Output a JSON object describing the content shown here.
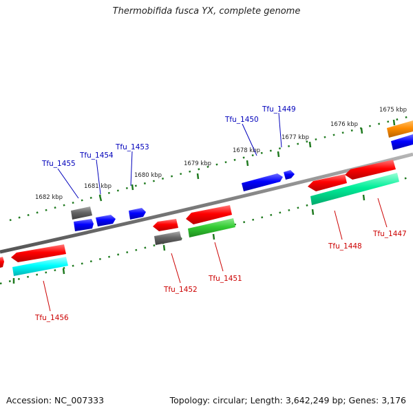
{
  "title": "Thermobifida fusca YX, complete genome",
  "footer": {
    "accession": "Accession: NC_007333",
    "summary": "Topology: circular; Length: 3,642,249 bp; Genes: 3,176"
  },
  "colors": {
    "backbone": "#7d7d7d",
    "ruler": "#1f7a1f",
    "label_top": "#0000bb",
    "label_bottom": "#cc0000"
  },
  "kbp_labels": [
    "1682 kbp",
    "1681 kbp",
    "1680 kbp",
    "1679 kbp",
    "1678 kbp",
    "1677 kbp",
    "1676 kbp",
    "1675 kbp"
  ],
  "gene_labels_top": [
    "Tfu_1455",
    "Tfu_1454",
    "Tfu_1453",
    "Tfu_1450",
    "Tfu_1449"
  ],
  "gene_labels_bottom": [
    "Tfu_1456",
    "Tfu_1452",
    "Tfu_1451",
    "Tfu_1448",
    "Tfu_1447"
  ],
  "features": [
    {
      "ring": "outer",
      "color": "#0000ff",
      "strand": "+"
    },
    {
      "ring": "outer",
      "color": "#0000ff",
      "strand": "+"
    },
    {
      "ring": "outer",
      "color": "#0000ff",
      "strand": "+"
    },
    {
      "ring": "outer",
      "color": "#0000ff",
      "strand": "+"
    },
    {
      "ring": "outer",
      "color": "#0000ff",
      "strand": "+"
    },
    {
      "ring": "outer",
      "color": "#666666",
      "strand": "none"
    },
    {
      "ring": "outer",
      "color": "#0000ff",
      "strand": "+"
    },
    {
      "ring": "outer",
      "color": "#ff8c00",
      "strand": "none"
    },
    {
      "ring": "inner",
      "color": "#ff0000",
      "strand": "-"
    },
    {
      "ring": "inner",
      "color": "#ff0000",
      "strand": "-"
    },
    {
      "ring": "inner",
      "color": "#ff0000",
      "strand": "-"
    },
    {
      "ring": "inner",
      "color": "#ff0000",
      "strand": "-"
    },
    {
      "ring": "inner",
      "color": "#ff0000",
      "strand": "-"
    },
    {
      "ring": "inner",
      "color": "#ff0000",
      "strand": "-"
    },
    {
      "ring": "inner2",
      "color": "#00ffff",
      "strand": "none"
    },
    {
      "ring": "inner2",
      "color": "#666666",
      "strand": "none"
    },
    {
      "ring": "inner2",
      "color": "#33cc33",
      "strand": "none"
    },
    {
      "ring": "inner2",
      "color": "#00ee99",
      "strand": "none"
    }
  ]
}
